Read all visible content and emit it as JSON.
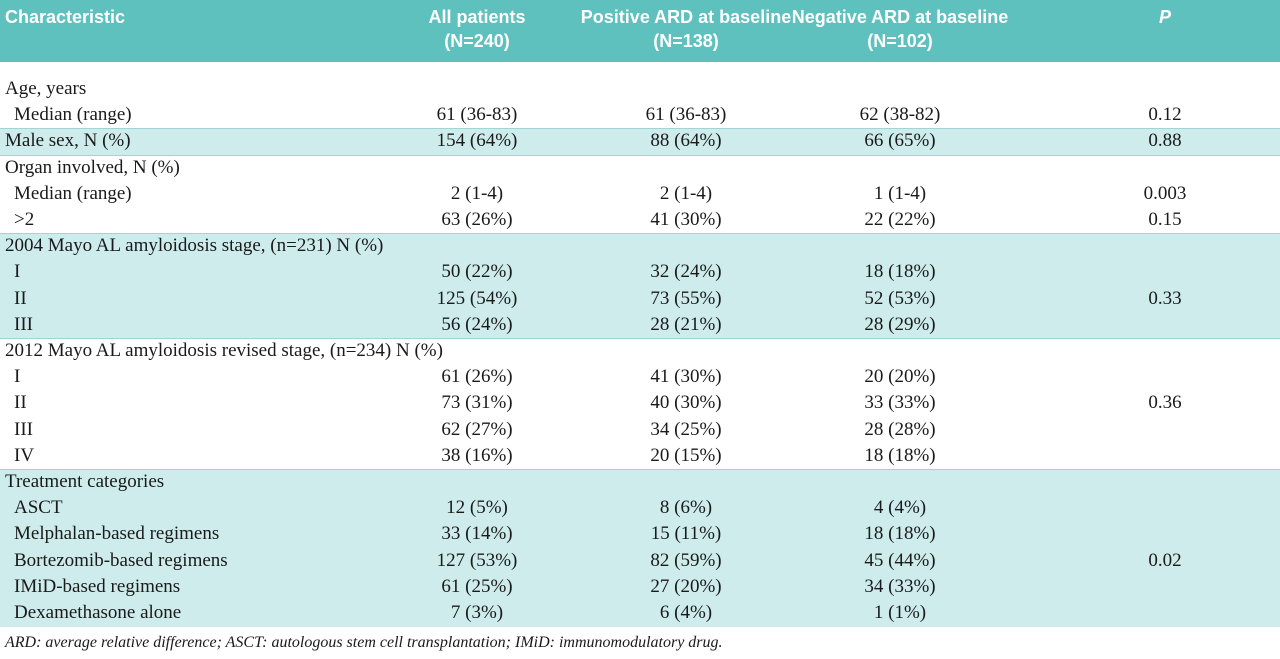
{
  "header": {
    "columns": [
      [
        "Characteristic"
      ],
      [
        "All patients",
        "(N=240)"
      ],
      [
        "Positive ARD at baseline",
        "(N=138)"
      ],
      [
        "Negative ARD at baseline",
        "(N=102)"
      ],
      [
        "P"
      ]
    ]
  },
  "sections": [
    {
      "cells": [
        "Age, years",
        null,
        null,
        null,
        null
      ],
      "rows": [
        [
          "Median (range)",
          "61 (36-83)",
          "61 (36-83)",
          "62 (38-82)",
          "0.12"
        ]
      ]
    },
    {
      "cells": [
        "Male sex, N (%)",
        "154 (64%)",
        "88 (64%)",
        "66 (65%)",
        "0.88"
      ],
      "rows": []
    },
    {
      "cells": [
        "Organ involved, N (%)",
        null,
        null,
        null,
        null
      ],
      "rows": [
        [
          "Median (range)",
          "2 (1-4)",
          "2 (1-4)",
          "1 (1-4)",
          "0.003"
        ],
        [
          ">2",
          "63 (26%)",
          "41 (30%)",
          "22 (22%)",
          "0.15"
        ]
      ]
    },
    {
      "cells": [
        "2004 Mayo AL amyloidosis stage, (n=231) N (%)",
        null,
        null,
        null,
        null
      ],
      "rows": [
        [
          "I",
          "50 (22%)",
          "32 (24%)",
          "18 (18%)",
          null
        ],
        [
          "II",
          "125 (54%)",
          "73 (55%)",
          "52 (53%)",
          "0.33"
        ],
        [
          "III",
          "56 (24%)",
          "28 (21%)",
          "28 (29%)",
          null
        ]
      ]
    },
    {
      "cells": [
        "2012 Mayo AL amyloidosis revised stage, (n=234) N (%)",
        null,
        null,
        null,
        null
      ],
      "rows": [
        [
          "I",
          "61 (26%)",
          "41 (30%)",
          "20 (20%)",
          null
        ],
        [
          "II",
          "73 (31%)",
          "40 (30%)",
          "33 (33%)",
          "0.36"
        ],
        [
          "III",
          "62 (27%)",
          "34 (25%)",
          "28 (28%)",
          null
        ],
        [
          "IV",
          "38 (16%)",
          "20 (15%)",
          "18 (18%)",
          null
        ]
      ]
    },
    {
      "cells": [
        "Treatment categories",
        null,
        null,
        null,
        null
      ],
      "rows": [
        [
          "ASCT",
          "12 (5%)",
          "8 (6%)",
          "4 (4%)",
          null
        ],
        [
          "Melphalan-based regimens",
          "33 (14%)",
          "15 (11%)",
          "18 (18%)",
          null
        ],
        [
          "Bortezomib-based regimens",
          "127 (53%)",
          "82 (59%)",
          "45 (44%)",
          "0.02"
        ],
        [
          "IMiD-based regimens",
          "61 (25%)",
          "27 (20%)",
          "34 (33%)",
          null
        ],
        [
          "Dexamethasone alone",
          "7 (3%)",
          "6 (4%)",
          "1 (1%)",
          null
        ]
      ]
    }
  ],
  "footnote": "ARD: average relative difference; ASCT: autologous stem cell transplantation; IMiD: immunomodulatory drug."
}
